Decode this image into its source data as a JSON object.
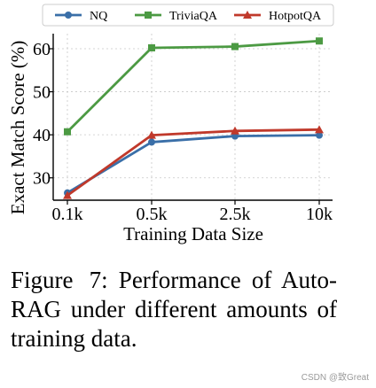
{
  "chart_data": {
    "type": "line",
    "categories": [
      "0.1k",
      "0.5k",
      "2.5k",
      "10k"
    ],
    "xlabel": "Training Data Size",
    "ylabel": "Exact Match Score (%)",
    "ylim": [
      24.8,
      63.5
    ],
    "yticks": [
      30,
      40,
      50,
      60
    ],
    "grid": true,
    "legend": "top",
    "series": [
      {
        "name": "NQ",
        "values": [
          26.5,
          38.3,
          39.7,
          39.9
        ],
        "color": "#3a6fa8",
        "marker": "circle"
      },
      {
        "name": "TriviaQA",
        "values": [
          40.7,
          60.2,
          60.5,
          61.8
        ],
        "color": "#4c9a43",
        "marker": "square"
      },
      {
        "name": "HotpotQA",
        "values": [
          25.9,
          39.9,
          40.9,
          41.2
        ],
        "color": "#c0392b",
        "marker": "triangle"
      }
    ]
  },
  "caption": {
    "label": "Figure 7:",
    "text": "Performance of Auto-RAG under different amounts of training data."
  },
  "watermark": "CSDN @致Great"
}
